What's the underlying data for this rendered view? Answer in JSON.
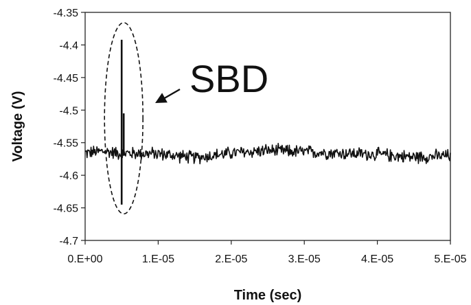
{
  "chart_data": {
    "type": "line",
    "title": "",
    "xlabel": "Time (sec)",
    "ylabel": "Voltage (V)",
    "xlim": [
      0,
      5e-05
    ],
    "ylim": [
      -4.7,
      -4.35
    ],
    "x_ticks": [
      0,
      1e-05,
      2e-05,
      3e-05,
      4e-05,
      5e-05
    ],
    "x_tick_labels": [
      "0.E+00",
      "1.E-05",
      "2.E-05",
      "3.E-05",
      "4.E-05",
      "5.E-05"
    ],
    "y_ticks": [
      -4.35,
      -4.4,
      -4.45,
      -4.5,
      -4.55,
      -4.6,
      -4.65,
      -4.7
    ],
    "y_tick_labels": [
      "-4.35",
      "-4.4",
      "-4.45",
      "-4.5",
      "-4.55",
      "-4.6",
      "-4.65",
      "-4.7"
    ],
    "grid": false,
    "series": [
      {
        "color": "#111111",
        "baseline": -4.565,
        "noise_amplitude": 0.012,
        "points": [
          [
            0.0,
            -4.566
          ],
          [
            2.5e-06,
            -4.563
          ],
          [
            4.5e-06,
            -4.566
          ],
          [
            5e-06,
            -4.392
          ],
          [
            5.1e-06,
            -4.645
          ],
          [
            5.2e-06,
            -4.505
          ],
          [
            5.3e-06,
            -4.566
          ],
          [
            1e-05,
            -4.567
          ],
          [
            1.5e-05,
            -4.573
          ],
          [
            2e-05,
            -4.566
          ],
          [
            2.5e-05,
            -4.562
          ],
          [
            3e-05,
            -4.564
          ],
          [
            3.5e-05,
            -4.566
          ],
          [
            4e-05,
            -4.568
          ],
          [
            4.5e-05,
            -4.572
          ],
          [
            5e-05,
            -4.57
          ]
        ]
      }
    ],
    "annotations": [
      {
        "text": "SBD",
        "shape": "dashed-ellipse",
        "arrow": true,
        "target_x": 5e-06,
        "target_y_range": [
          -4.655,
          -4.37
        ]
      }
    ]
  }
}
